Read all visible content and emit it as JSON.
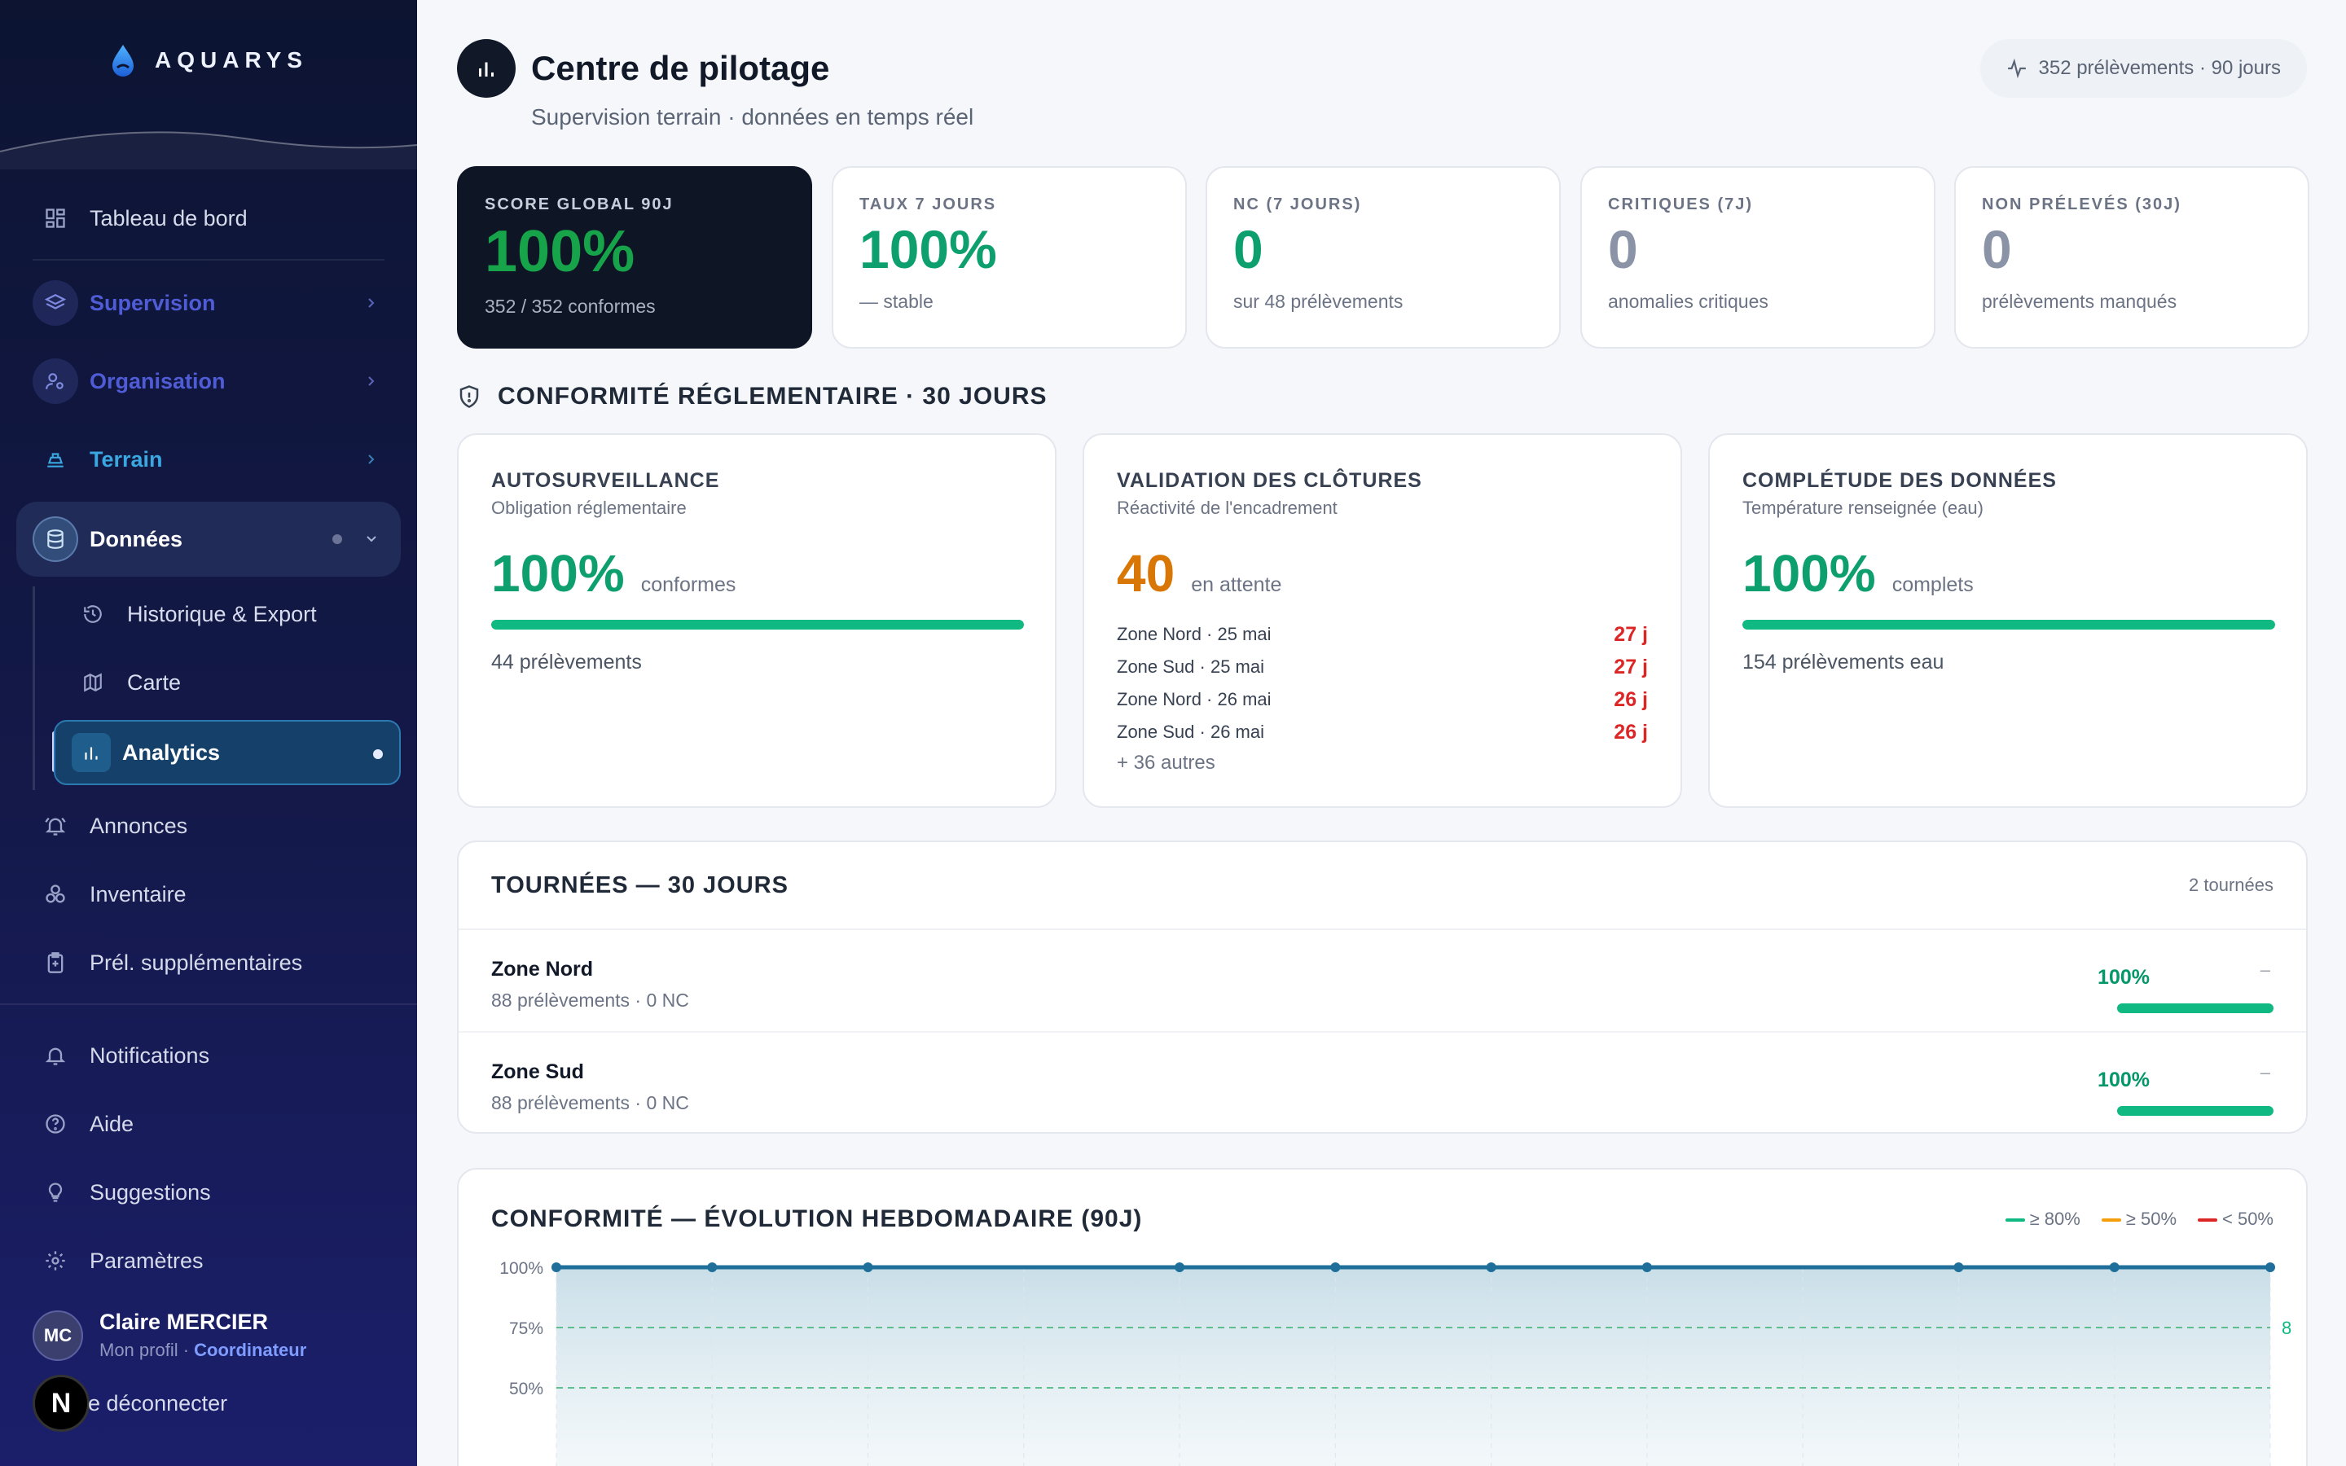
{
  "brand": {
    "name": "AQUARYS"
  },
  "sidebar": {
    "items": [
      {
        "label": "Tableau de bord",
        "icon": "dashboard-icon"
      },
      {
        "label": "Supervision",
        "icon": "layers-icon"
      },
      {
        "label": "Organisation",
        "icon": "user-settings-icon"
      },
      {
        "label": "Terrain",
        "icon": "terrain-icon"
      },
      {
        "label": "Données",
        "icon": "database-icon"
      },
      {
        "label": "Historique & Export",
        "icon": "history-icon"
      },
      {
        "label": "Carte",
        "icon": "map-icon"
      },
      {
        "label": "Analytics",
        "icon": "chart-icon"
      },
      {
        "label": "Annonces",
        "icon": "bell-ring-icon"
      },
      {
        "label": "Inventaire",
        "icon": "inventory-icon"
      },
      {
        "label": "Prél. supplémentaires",
        "icon": "clipboard-plus-icon"
      },
      {
        "label": "Notifications",
        "icon": "bell-icon"
      },
      {
        "label": "Aide",
        "icon": "help-icon"
      },
      {
        "label": "Suggestions",
        "icon": "bulb-icon"
      },
      {
        "label": "Paramètres",
        "icon": "gear-icon"
      }
    ],
    "user": {
      "initials": "MC",
      "name": "Claire MERCIER",
      "profile": "Mon profil",
      "role": "Coordinateur"
    },
    "logout": "e déconnecter",
    "next_badge": "N"
  },
  "header": {
    "title": "Centre de pilotage",
    "subtitle": "Supervision terrain · données en temps réel",
    "pill": "352 prélèvements · 90 jours"
  },
  "kpis": [
    {
      "label": "SCORE GLOBAL 90J",
      "value": "100%",
      "sub": "352 / 352 conformes"
    },
    {
      "label": "TAUX 7 JOURS",
      "value": "100%",
      "sub": "— stable"
    },
    {
      "label": "NC (7 JOURS)",
      "value": "0",
      "sub": "sur 48 prélèvements"
    },
    {
      "label": "CRITIQUES (7J)",
      "value": "0",
      "sub": "anomalies critiques"
    },
    {
      "label": "NON PRÉLEVÉS (30J)",
      "value": "0",
      "sub": "prélèvements manqués"
    }
  ],
  "compliance": {
    "title": "CONFORMITÉ RÉGLEMENTAIRE · 30 JOURS",
    "cards": [
      {
        "title": "AUTOSURVEILLANCE",
        "sub": "Obligation réglementaire",
        "value": "100%",
        "unit": "conformes",
        "progress": 1.0,
        "note": "44 prélèvements"
      },
      {
        "title": "VALIDATION DES CLÔTURES",
        "sub": "Réactivité de l'encadrement",
        "value": "40",
        "unit": "en attente",
        "rows": [
          {
            "zone": "Zone Nord · 25 mai",
            "days": "27 j"
          },
          {
            "zone": "Zone Sud · 25 mai",
            "days": "27 j"
          },
          {
            "zone": "Zone Nord · 26 mai",
            "days": "26 j"
          },
          {
            "zone": "Zone Sud · 26 mai",
            "days": "26 j"
          }
        ],
        "more": "+ 36 autres"
      },
      {
        "title": "COMPLÉTUDE DES DONNÉES",
        "sub": "Température renseignée (eau)",
        "value": "100%",
        "unit": "complets",
        "progress": 1.0,
        "note": "154 prélèvements eau"
      }
    ]
  },
  "tours": {
    "title": "TOURNÉES — 30 JOURS",
    "count": "2 tournées",
    "rows": [
      {
        "name": "Zone Nord",
        "sub": "88 prélèvements · 0 NC",
        "pct": "100%",
        "trend": "–",
        "progress": 1.0
      },
      {
        "name": "Zone Sud",
        "sub": "88 prélèvements · 0 NC",
        "pct": "100%",
        "trend": "–",
        "progress": 1.0
      }
    ]
  },
  "colors": {
    "green": "#0e9f6e",
    "orange": "#d97706",
    "red": "#dc2626",
    "slate": "#8a94a6",
    "line": "#1f6f9a"
  },
  "chart_data": {
    "type": "area",
    "title": "CONFORMITÉ — ÉVOLUTION HEBDOMADAIRE (90J)",
    "legend": [
      "≥ 80%",
      "≥ 50%",
      "< 50%"
    ],
    "y_ticks": [
      "100%",
      "75%",
      "50%"
    ],
    "ylim": [
      0,
      100
    ],
    "threshold_labels": [
      "8"
    ],
    "thresholds": [
      80,
      50
    ],
    "series": [
      {
        "values": [
          100,
          100,
          100,
          100,
          100,
          100,
          100,
          100,
          100,
          100,
          100,
          100
        ]
      }
    ]
  }
}
